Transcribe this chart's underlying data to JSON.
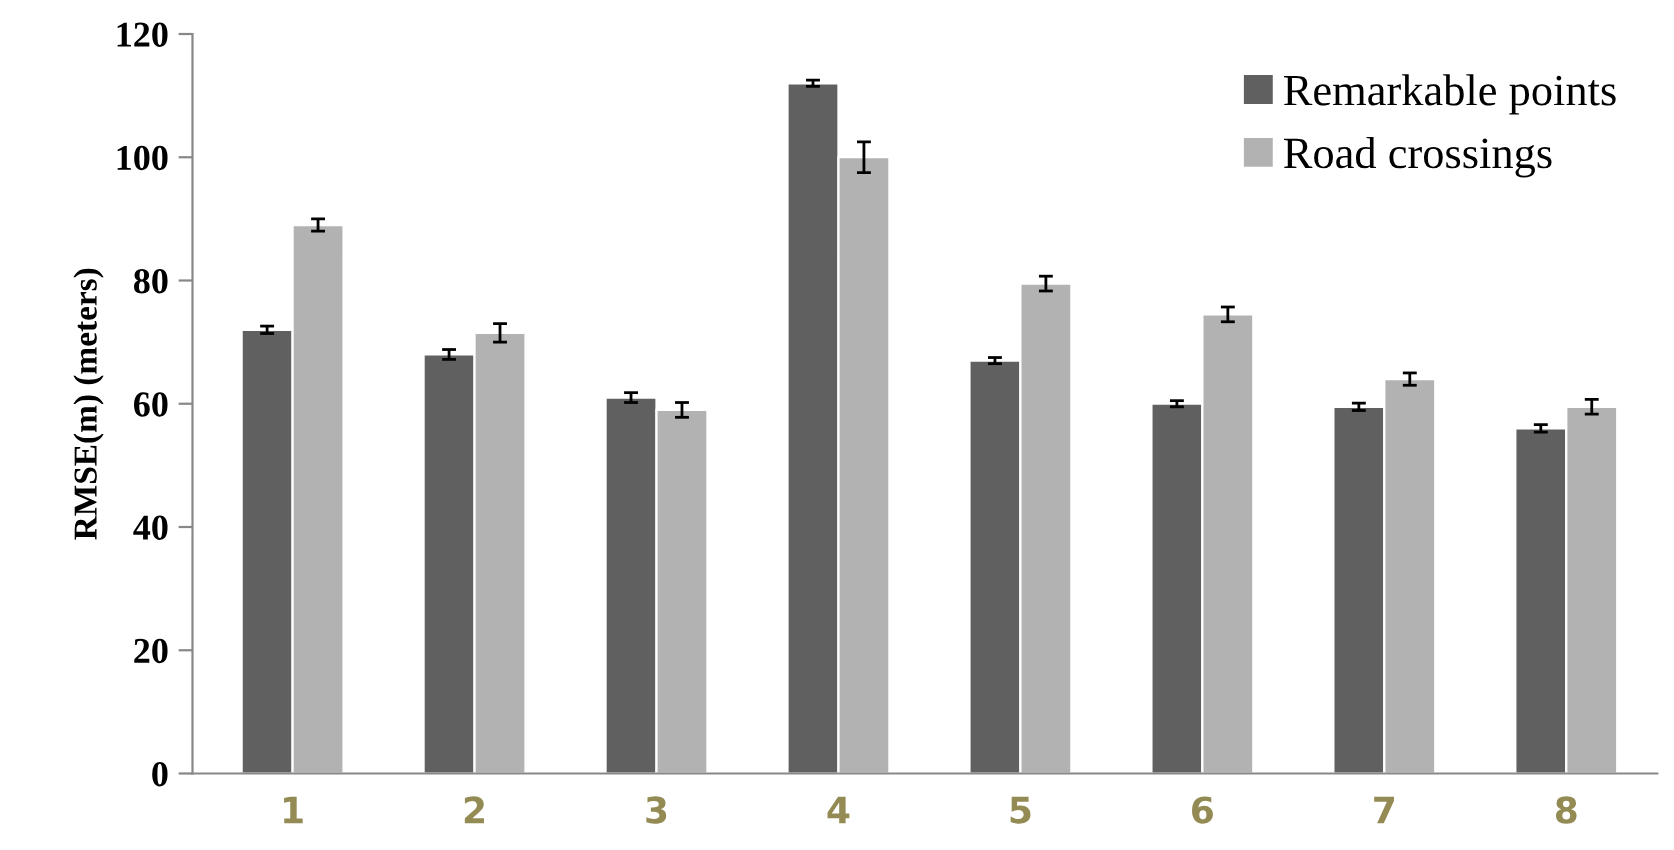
{
  "chart_data": {
    "type": "bar",
    "ylabel": "RMSE(m) (meters)",
    "categories": [
      "1",
      "2",
      "3",
      "4",
      "5",
      "6",
      "7",
      "8"
    ],
    "series": [
      {
        "name": "Remarkable points",
        "color": "#606060",
        "values": [
          72,
          68,
          61,
          112,
          67,
          60,
          59.5,
          56
        ],
        "errors": [
          0.6,
          0.8,
          0.8,
          0.5,
          0.5,
          0.5,
          0.6,
          0.6
        ]
      },
      {
        "name": "Road crossings",
        "color": "#b2b2b2",
        "values": [
          89,
          71.5,
          59,
          100,
          79.5,
          74.5,
          64,
          59.5
        ],
        "errors": [
          1,
          1.5,
          1.2,
          2.5,
          1.2,
          1.2,
          1,
          1.2
        ]
      }
    ],
    "ylim": [
      0,
      120
    ],
    "yticks": [
      0,
      20,
      40,
      60,
      80,
      100,
      120
    ],
    "grid": false,
    "legend": "top right"
  }
}
